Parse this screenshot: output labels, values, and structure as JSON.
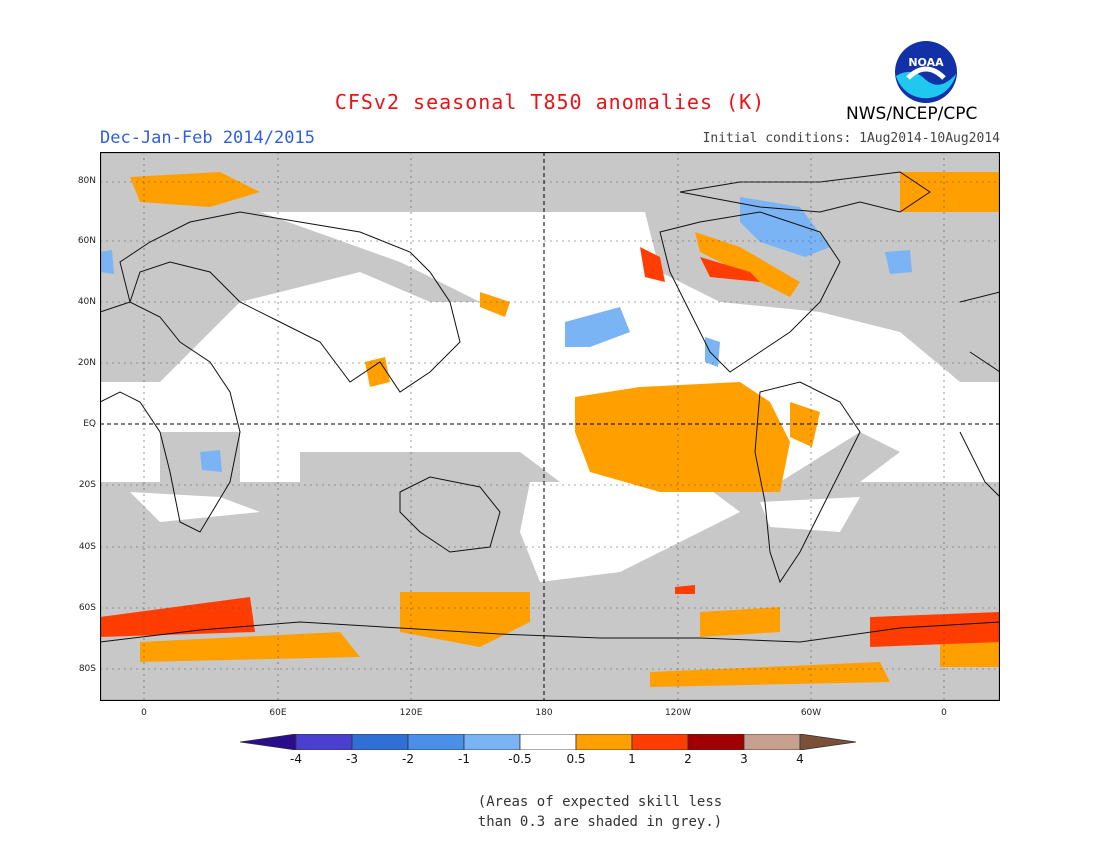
{
  "title": "CFSv2 seasonal T850 anomalies (K)",
  "season": "Dec-Jan-Feb 2014/2015",
  "initial_conditions": "Initial conditions: 1Aug2014-10Aug2014",
  "agency": "NWS/NCEP/CPC",
  "logo_text": "NOAA",
  "lat_ticks": [
    "80N",
    "60N",
    "40N",
    "20N",
    "EQ",
    "20S",
    "40S",
    "60S",
    "80S"
  ],
  "lon_ticks": [
    "0",
    "60E",
    "120E",
    "180",
    "120W",
    "60W",
    "0"
  ],
  "colorbar": {
    "labels": [
      "-4",
      "-3",
      "-2",
      "-1",
      "-0.5",
      "0.5",
      "1",
      "2",
      "3",
      "4"
    ],
    "colors": [
      "#2a0d8c",
      "#4a3fcf",
      "#2f6fd6",
      "#4a90e8",
      "#7ab4f5",
      "#ffffff",
      "#ff9f00",
      "#ff3d00",
      "#a00000",
      "#c8a090",
      "#7a5038"
    ]
  },
  "colors": {
    "grey_skill": "#c8c8c8",
    "warm_1": "#ff9f00",
    "warm_2": "#ff3d00",
    "cool": "#7ab4f5"
  },
  "note_line1": "(Areas of expected skill less",
  "note_line2": "than 0.3 are shaded in grey.)"
}
